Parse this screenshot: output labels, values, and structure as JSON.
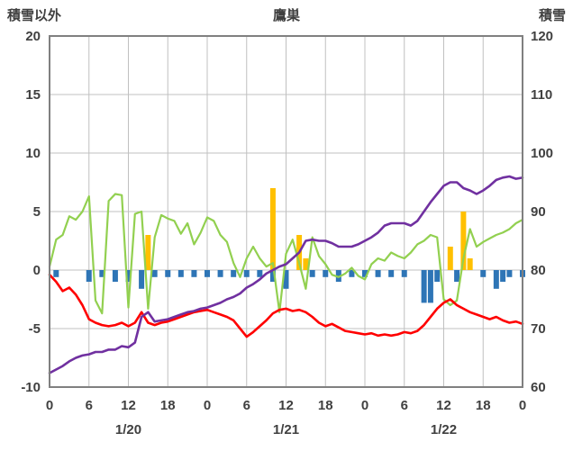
{
  "header": {
    "left_label": "積雪以外",
    "title": "鷹巣",
    "right_label": "積雪"
  },
  "colors": {
    "purple": "#7030A0",
    "green": "#92D050",
    "red": "#FF0000",
    "orange": "#FFC000",
    "blue": "#2E75B6",
    "grid": "#C0C0C0",
    "frame": "#808080",
    "text": "#404040",
    "background": "#FFFFFF"
  },
  "chart_data": {
    "type": "line+bar",
    "title": "鷹巣",
    "x": {
      "unit": "hour",
      "start": 0,
      "end": 72,
      "tick_interval": 6,
      "tick_labels": [
        "0",
        "6",
        "12",
        "18",
        "0",
        "6",
        "12",
        "18",
        "0",
        "6",
        "12",
        "18",
        "0"
      ],
      "date_labels": [
        {
          "label": "1/20",
          "center_hour": 12
        },
        {
          "label": "1/21",
          "center_hour": 36
        },
        {
          "label": "1/22",
          "center_hour": 60
        }
      ]
    },
    "left_axis": {
      "label": "積雪以外",
      "min": -10,
      "max": 20,
      "tick_step": 5,
      "ticks": [
        20,
        15,
        10,
        5,
        0,
        -5,
        -10
      ]
    },
    "right_axis": {
      "label": "積雪",
      "min": 60,
      "max": 120,
      "tick_step": 10,
      "ticks": [
        120,
        110,
        100,
        90,
        80,
        70,
        60
      ]
    },
    "grid": true,
    "legend": "none",
    "series": [
      {
        "name": "orange-bars",
        "kind": "bar",
        "axis": "left",
        "color_key": "orange",
        "points": [
          [
            15,
            3
          ],
          [
            34,
            7
          ],
          [
            38,
            3
          ],
          [
            39,
            1
          ],
          [
            61,
            2
          ],
          [
            63,
            5
          ],
          [
            64,
            1
          ]
        ]
      },
      {
        "name": "blue-bars",
        "kind": "bar",
        "axis": "left",
        "color_key": "blue",
        "points": [
          [
            1,
            -0.6
          ],
          [
            6,
            -1
          ],
          [
            8,
            -0.6
          ],
          [
            10,
            -1
          ],
          [
            12,
            -1
          ],
          [
            14,
            -1.6
          ],
          [
            16,
            -0.6
          ],
          [
            18,
            -0.6
          ],
          [
            20,
            -0.6
          ],
          [
            22,
            -0.6
          ],
          [
            24,
            -0.6
          ],
          [
            26,
            -0.6
          ],
          [
            28,
            -0.6
          ],
          [
            30,
            -0.6
          ],
          [
            32,
            -0.6
          ],
          [
            34,
            -1
          ],
          [
            36,
            -1.6
          ],
          [
            40,
            -0.6
          ],
          [
            42,
            -0.6
          ],
          [
            44,
            -1
          ],
          [
            46,
            -0.6
          ],
          [
            48,
            -0.6
          ],
          [
            50,
            -0.6
          ],
          [
            52,
            -0.6
          ],
          [
            54,
            -0.6
          ],
          [
            57,
            -2.8
          ],
          [
            58,
            -2.8
          ],
          [
            59,
            -1
          ],
          [
            62,
            -1
          ],
          [
            66,
            -0.6
          ],
          [
            68,
            -1.6
          ],
          [
            69,
            -1
          ],
          [
            70,
            -0.6
          ],
          [
            72,
            -0.6
          ]
        ]
      },
      {
        "name": "green-line",
        "kind": "line",
        "axis": "left",
        "color_key": "green",
        "width": 2.2,
        "values": [
          0.3,
          2.6,
          3,
          4.6,
          4.3,
          5,
          6.3,
          -2.6,
          -3.7,
          5.9,
          6.5,
          6.4,
          -3.2,
          4.8,
          5,
          -3.3,
          2.8,
          4.7,
          4.4,
          4.2,
          3.1,
          4,
          2.2,
          3.2,
          4.5,
          4.2,
          3,
          2.4,
          0.6,
          -0.6,
          1,
          2,
          1,
          0.3,
          0.6,
          -3.6,
          1.4,
          2.6,
          0.6,
          -1.6,
          2.8,
          1.2,
          0.5,
          -0.4,
          -0.6,
          -0.3,
          0.2,
          -0.5,
          -0.8,
          0.5,
          1,
          0.8,
          1.5,
          1.2,
          1,
          1.5,
          2.2,
          2.5,
          3,
          2.8,
          -2.5,
          -3,
          -2.6,
          1,
          3.5,
          2,
          2.4,
          2.7,
          3,
          3.2,
          3.5,
          4,
          4.3
        ]
      },
      {
        "name": "red-line",
        "kind": "line",
        "axis": "left",
        "color_key": "red",
        "width": 2.6,
        "values": [
          -0.4,
          -1,
          -1.8,
          -1.5,
          -2.1,
          -3,
          -4.2,
          -4.5,
          -4.7,
          -4.8,
          -4.7,
          -4.5,
          -4.8,
          -4.5,
          -3.6,
          -4.5,
          -4.7,
          -4.5,
          -4.4,
          -4.2,
          -4,
          -3.8,
          -3.6,
          -3.5,
          -3.4,
          -3.6,
          -3.8,
          -4,
          -4.3,
          -5,
          -5.7,
          -5.3,
          -4.8,
          -4.3,
          -3.7,
          -3.4,
          -3.3,
          -3.5,
          -3.4,
          -3.6,
          -4,
          -4.5,
          -4.8,
          -4.6,
          -4.9,
          -5.2,
          -5.3,
          -5.4,
          -5.5,
          -5.4,
          -5.6,
          -5.5,
          -5.6,
          -5.5,
          -5.3,
          -5.4,
          -5.2,
          -4.7,
          -4,
          -3.3,
          -2.8,
          -2.5,
          -3,
          -3.3,
          -3.6,
          -3.8,
          -4,
          -4.2,
          -4,
          -4.3,
          -4.5,
          -4.4,
          -4.6
        ]
      },
      {
        "name": "purple-line",
        "kind": "line",
        "axis": "right",
        "color_key": "purple",
        "width": 2.6,
        "values": [
          62.4,
          63,
          63.6,
          64.4,
          65,
          65.4,
          65.6,
          66,
          66,
          66.4,
          66.4,
          67,
          66.8,
          67.6,
          72,
          72.8,
          71.2,
          71.4,
          71.6,
          72,
          72.4,
          72.8,
          73,
          73.4,
          73.6,
          74,
          74.4,
          75,
          75.4,
          76,
          77,
          77.6,
          78.4,
          79.4,
          80,
          80.6,
          81,
          82,
          83,
          85,
          85.2,
          85,
          85,
          84.6,
          84,
          84,
          84,
          84.4,
          85,
          85.6,
          86.4,
          87.6,
          88,
          88,
          88,
          87.6,
          88.4,
          90,
          91.6,
          93,
          94.4,
          95,
          95,
          94,
          93.6,
          93,
          93.6,
          94.4,
          95.4,
          95.8,
          96,
          95.6,
          95.8
        ]
      }
    ]
  }
}
